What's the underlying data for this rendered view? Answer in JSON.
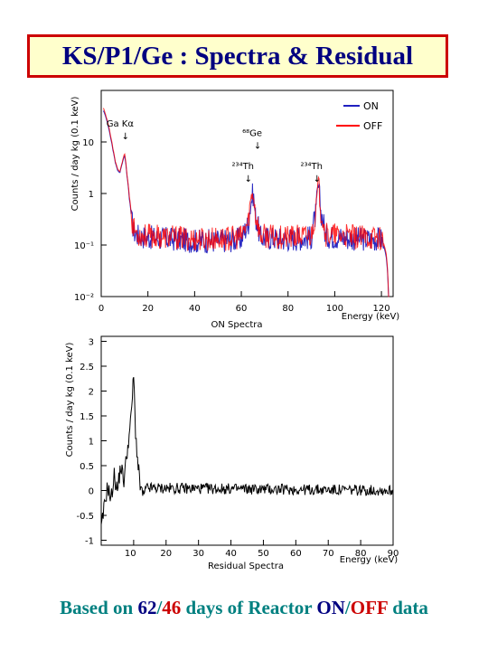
{
  "title": "KS/P1/Ge : Spectra & Residual",
  "footer": {
    "prefix": "Based on ",
    "on_days": "62",
    "slash1": "/",
    "off_days": "46",
    "middle": " days of Reactor ",
    "on_label": "ON",
    "slash2": "/",
    "off_label": "OFF",
    "suffix": " data"
  },
  "colors": {
    "on": "#2020c0",
    "off": "#ff0000",
    "title_border": "#cc0000",
    "title_bg": "#ffffcc",
    "title_text": "#000080",
    "footer_text": "#008080"
  },
  "chart_data": [
    {
      "type": "line",
      "title": "",
      "subtitle": "ON Spectra",
      "xlabel": "Energy (keV)",
      "ylabel": "Counts / day kg (0.1 keV)",
      "xlim": [
        0,
        125
      ],
      "ylim_log10": [
        -2,
        2
      ],
      "log_y": true,
      "x_ticks": [
        "0",
        "20",
        "40",
        "60",
        "80",
        "100",
        "120"
      ],
      "y_ticks": [
        "10^{-2}",
        "10^{-1}",
        "1",
        "10",
        "10^{2}"
      ],
      "legend": [
        "ON",
        "OFF"
      ],
      "legend_position": "top-right",
      "series": [
        {
          "name": "ON",
          "color": "#2020c0",
          "points": [
            [
              1,
              40
            ],
            [
              2,
              30
            ],
            [
              3,
              20
            ],
            [
              4,
              12
            ],
            [
              5,
              7
            ],
            [
              6,
              4
            ],
            [
              7,
              2.8
            ],
            [
              8,
              2.5
            ],
            [
              9,
              3.8
            ],
            [
              10,
              5.5
            ],
            [
              11,
              2.2
            ],
            [
              12,
              0.8
            ],
            [
              13,
              0.3
            ],
            [
              14,
              0.18
            ],
            [
              16,
              0.15
            ],
            [
              20,
              0.14
            ],
            [
              30,
              0.13
            ],
            [
              40,
              0.12
            ],
            [
              50,
              0.12
            ],
            [
              60,
              0.13
            ],
            [
              63,
              0.25
            ],
            [
              65,
              1.0
            ],
            [
              66,
              0.35
            ],
            [
              68,
              0.14
            ],
            [
              80,
              0.13
            ],
            [
              90,
              0.14
            ],
            [
              92,
              0.4
            ],
            [
              93,
              1.3
            ],
            [
              94,
              0.45
            ],
            [
              96,
              0.15
            ],
            [
              110,
              0.13
            ],
            [
              120,
              0.13
            ],
            [
              122,
              0.06
            ],
            [
              123,
              0.01
            ]
          ]
        },
        {
          "name": "OFF",
          "color": "#ff0000",
          "points": [
            [
              1,
              45
            ],
            [
              2,
              32
            ],
            [
              3,
              22
            ],
            [
              4,
              13
            ],
            [
              5,
              7.5
            ],
            [
              6,
              4.2
            ],
            [
              7,
              3
            ],
            [
              8,
              2.6
            ],
            [
              9,
              4
            ],
            [
              10,
              6
            ],
            [
              11,
              2.3
            ],
            [
              12,
              0.9
            ],
            [
              13,
              0.32
            ],
            [
              14,
              0.2
            ],
            [
              16,
              0.16
            ],
            [
              20,
              0.15
            ],
            [
              30,
              0.14
            ],
            [
              40,
              0.13
            ],
            [
              50,
              0.13
            ],
            [
              60,
              0.14
            ],
            [
              63,
              0.27
            ],
            [
              65,
              1.1
            ],
            [
              66,
              0.38
            ],
            [
              68,
              0.15
            ],
            [
              80,
              0.14
            ],
            [
              90,
              0.15
            ],
            [
              92,
              0.42
            ],
            [
              93,
              1.4
            ],
            [
              94,
              0.48
            ],
            [
              96,
              0.16
            ],
            [
              110,
              0.14
            ],
            [
              120,
              0.14
            ],
            [
              122,
              0.07
            ],
            [
              123,
              0.01
            ]
          ]
        }
      ],
      "annotations": [
        {
          "text": "Ga Kα",
          "x": 10.4,
          "y": 20
        },
        {
          "text": "⁶⁸Ge",
          "x": 67,
          "y": 13
        },
        {
          "text": "²³⁴Th",
          "x": 63,
          "y": 3.0
        },
        {
          "text": "²³⁴Th",
          "x": 92.4,
          "y": 3.0
        }
      ]
    },
    {
      "type": "line",
      "title": "",
      "subtitle": "Residual Spectra",
      "xlabel": "Energy (keV)",
      "ylabel": "Counts / day kg (0.1 keV)",
      "xlim": [
        5,
        50
      ],
      "ylim": [
        -1.1,
        3.1
      ],
      "x_ticks": [
        "10",
        "20",
        "30",
        "40",
        "50",
        "60",
        "70",
        "80",
        "90",
        "50"
      ],
      "y_ticks": [
        "-1",
        "-0.5",
        "0",
        "0.5",
        "1",
        "1.5",
        "2",
        "2.5",
        "3"
      ],
      "series": [
        {
          "name": "",
          "color": "#000000",
          "points": [
            [
              5,
              -0.8
            ],
            [
              5.5,
              -0.3
            ],
            [
              6,
              0.1
            ],
            [
              6.5,
              -0.2
            ],
            [
              7,
              0.3
            ],
            [
              7.5,
              0
            ],
            [
              8,
              0.5
            ],
            [
              8.5,
              0.2
            ],
            [
              9,
              0.8
            ],
            [
              9.5,
              1.3
            ],
            [
              10,
              2.3
            ],
            [
              10.3,
              1.2
            ],
            [
              10.6,
              0.6
            ],
            [
              11,
              0.1
            ],
            [
              11.5,
              -0.1
            ],
            [
              12,
              0.05
            ],
            [
              50,
              0
            ]
          ]
        }
      ]
    }
  ]
}
